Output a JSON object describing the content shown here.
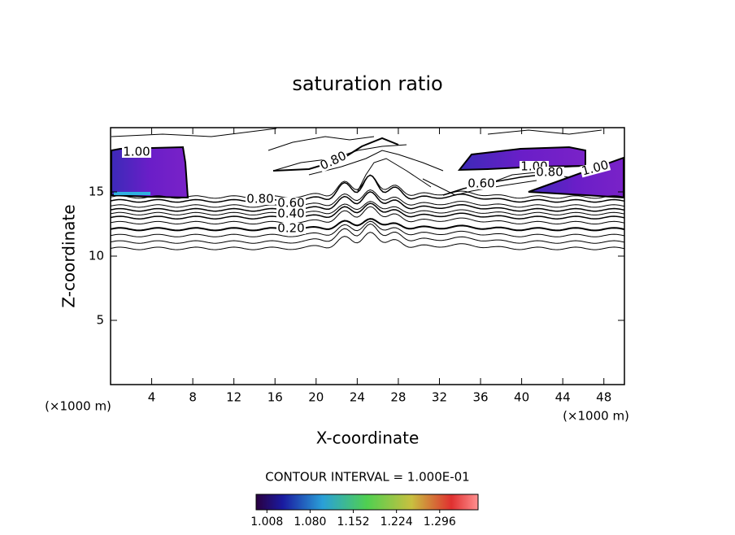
{
  "chart_data": {
    "type": "contour",
    "title": "saturation ratio",
    "xlabel": "X-coordinate",
    "ylabel": "Z-coordinate",
    "xunit": "(×1000 m)",
    "xlim": [
      0,
      50
    ],
    "xticks": [
      4,
      8,
      12,
      16,
      20,
      24,
      28,
      32,
      36,
      40,
      44,
      48
    ],
    "ylim": [
      0,
      20
    ],
    "yticks": [
      5,
      10,
      15
    ],
    "contour_interval": "CONTOUR INTERVAL = 1.000E-01",
    "contours": [
      {
        "level": 1.0,
        "label": "1.00"
      },
      {
        "level": 0.8,
        "label": "0.80"
      },
      {
        "level": 0.8,
        "label": "0.80"
      },
      {
        "level": 0.6,
        "label": "0.60"
      },
      {
        "level": 0.4,
        "label": "0.40"
      },
      {
        "level": 0.2,
        "label": "0.20"
      },
      {
        "level": 0.6,
        "label": "0.60"
      },
      {
        "level": 1.0,
        "label": "1.00"
      },
      {
        "level": 0.8,
        "label": "0.80"
      },
      {
        "level": 1.0,
        "label": "1.00"
      }
    ],
    "colorbar_lim": [
      0.99,
      1.36
    ],
    "colorbar_ticks": [
      1.008,
      {
        "value": 1.08,
        "label": "1.080"
      },
      1.152,
      1.224,
      1.296
    ]
  }
}
